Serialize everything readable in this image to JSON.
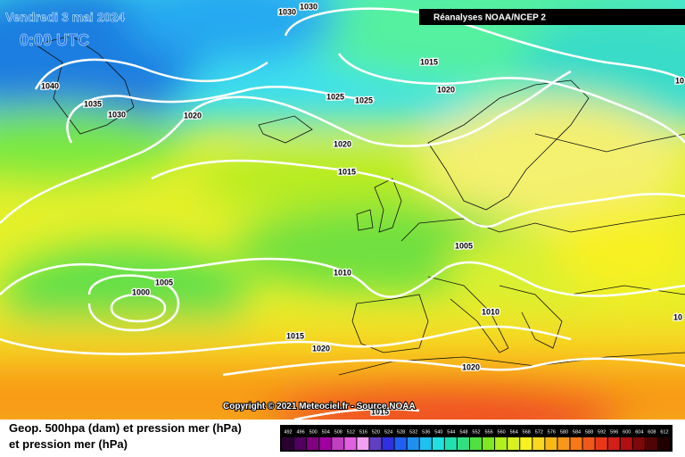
{
  "header": {
    "date": "Vendredi 3 mai 2024",
    "time": "0:00 UTC",
    "source_badge": "Réanalyses NOAA/NCEP 2"
  },
  "isobar_labels": [
    "1030",
    "1030",
    "1040",
    "1035",
    "1030",
    "1020",
    "1015",
    "1020",
    "1025",
    "1025",
    "1020",
    "1015",
    "1005",
    "1010",
    "1005",
    "1000",
    "1010",
    "1015",
    "1020",
    "1020",
    "1015",
    "10",
    "10"
  ],
  "copyright": "Copyright © 2021 Meteociel.fr - Source NOAA",
  "legend": {
    "line1": "Geop. 500hpa (dam) et pression mer (hPa)",
    "line2": "et pression mer (hPa)",
    "scale": [
      492,
      496,
      500,
      504,
      508,
      512,
      516,
      520,
      524,
      528,
      532,
      536,
      540,
      544,
      548,
      552,
      556,
      560,
      564,
      568,
      572,
      576,
      580,
      584,
      588,
      592,
      596,
      600,
      604,
      608,
      612
    ]
  }
}
